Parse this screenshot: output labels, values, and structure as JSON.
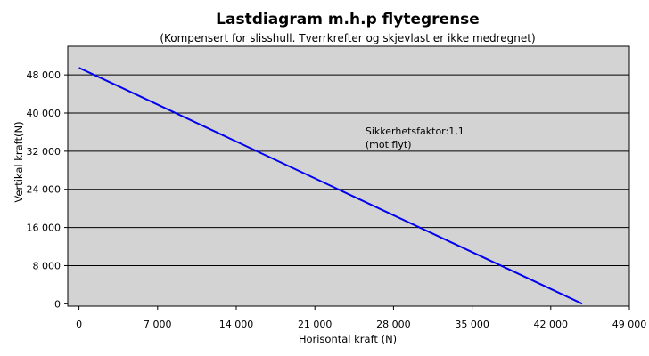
{
  "chart_data": {
    "type": "line",
    "title": "Lastdiagram m.h.p flytegrense",
    "subtitle": "(Kompensert for slisshull. Tverrkrefter og skjevlast er ikke medregnet)",
    "xlabel": "Horisontal kraft (N)",
    "ylabel": "Vertikal kraft(N)",
    "xlim": [
      -1000,
      49000
    ],
    "ylim": [
      -500,
      54000
    ],
    "x_ticks": [
      0,
      7000,
      14000,
      21000,
      28000,
      35000,
      42000,
      49000
    ],
    "x_tick_labels": [
      "0",
      "7 000",
      "14 000",
      "21 000",
      "28 000",
      "35 000",
      "42 000",
      "49 000"
    ],
    "y_ticks": [
      0,
      8000,
      16000,
      24000,
      32000,
      40000,
      48000
    ],
    "y_tick_labels": [
      "0",
      "8 000",
      "16 000",
      "24 000",
      "32 000",
      "40 000",
      "48 000"
    ],
    "grid": "horizontal",
    "series": [
      {
        "color": "#0000ee",
        "x": [
          0,
          44800
        ],
        "y": [
          49500,
          0
        ]
      }
    ],
    "annotation": {
      "lines": [
        "Sikkerhetsfaktor:1,1",
        "(mot flyt)"
      ],
      "x": 25500,
      "y": 35500
    },
    "plot_background": "#d3d3d3"
  }
}
